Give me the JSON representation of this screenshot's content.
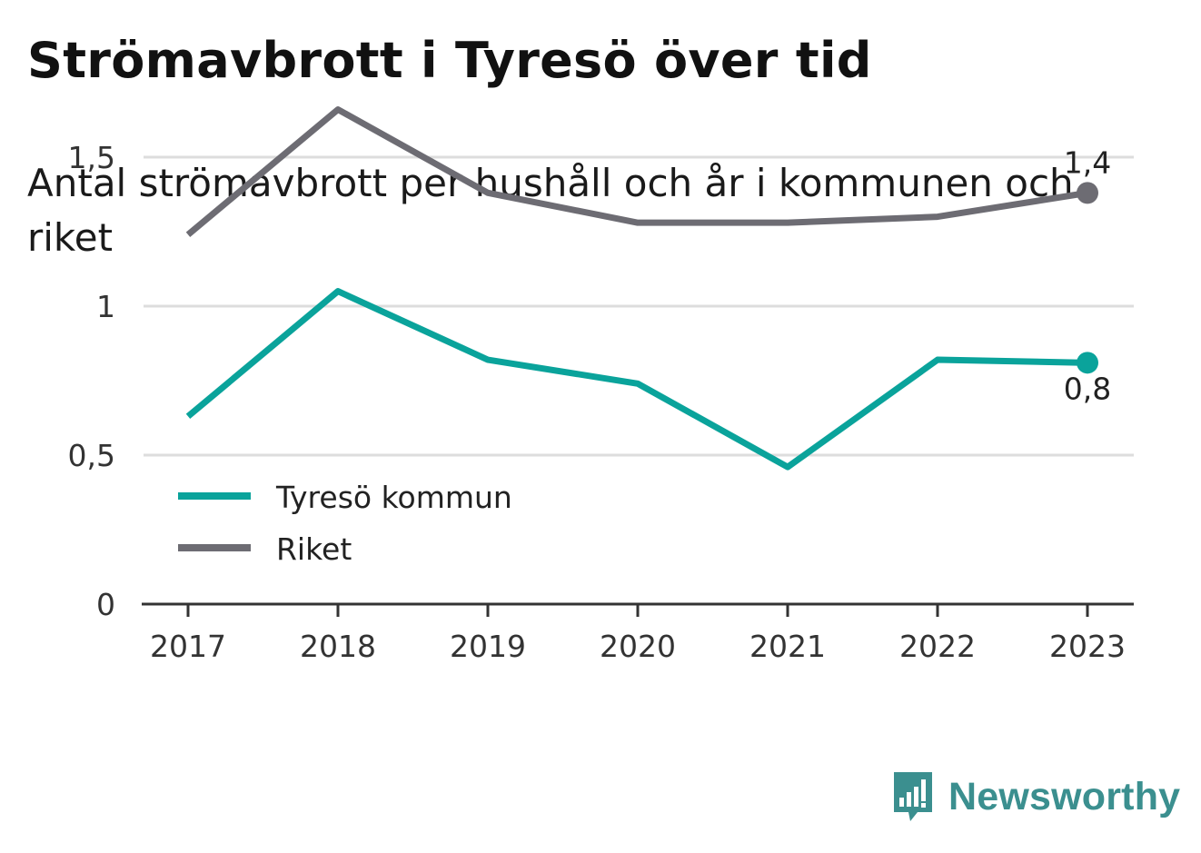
{
  "title": "Strömavbrott i Tyresö över tid",
  "subtitle": "Antal strömavbrott per hushåll och år i kommunen och riket",
  "brand": {
    "name": "Newsworthy",
    "color": "#3b8f8f",
    "icon": "bar-chart-speech-bubble-icon"
  },
  "colors": {
    "tyreso": "#0aa39b",
    "riket": "#6d6c73",
    "grid": "#dddddd",
    "axis": "#333333"
  },
  "chart_data": {
    "type": "line",
    "x": [
      "2017",
      "2018",
      "2019",
      "2020",
      "2021",
      "2022",
      "2023"
    ],
    "ylim": [
      0,
      1.7
    ],
    "yticks": [
      0,
      0.5,
      1,
      1.5
    ],
    "ytick_labels": [
      "0",
      "0,5",
      "1",
      "1,5"
    ],
    "grid": true,
    "legend_placement": "center-left",
    "series": [
      {
        "name": "Tyresö kommun",
        "values": [
          0.63,
          1.05,
          0.82,
          0.74,
          0.46,
          0.82,
          0.81
        ],
        "end_label": "0,8"
      },
      {
        "name": "Riket",
        "values": [
          1.24,
          1.66,
          1.38,
          1.28,
          1.28,
          1.3,
          1.38
        ],
        "end_label": "1,4"
      }
    ]
  }
}
